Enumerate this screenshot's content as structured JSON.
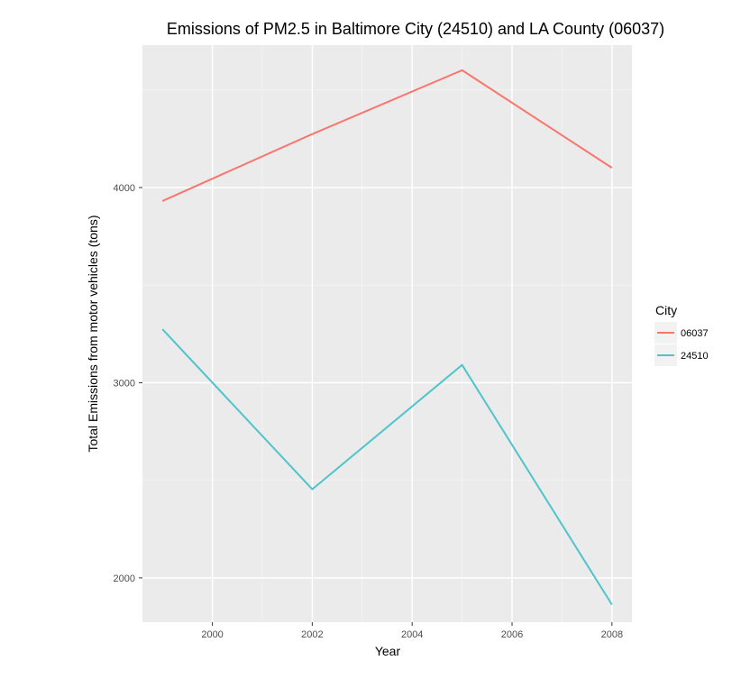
{
  "chart_data": {
    "type": "line",
    "title": "Emissions of PM2.5 in Baltimore City (24510) and LA County (06037)",
    "xlabel": "Year",
    "ylabel": "Total Emissions from motor vehicles (tons)",
    "x": [
      1999,
      2002,
      2005,
      2008
    ],
    "xlim": [
      1998.6,
      2008.4
    ],
    "ylim": [
      1773,
      4730
    ],
    "x_ticks": [
      2000,
      2002,
      2004,
      2006,
      2008
    ],
    "x_tick_labels": [
      "2000",
      "2002",
      "2004",
      "2006",
      "2008"
    ],
    "y_ticks": [
      2000,
      3000,
      4000
    ],
    "y_tick_labels": [
      "2000",
      "3000",
      "4000"
    ],
    "grid": true,
    "panel_background": "#ebebeb",
    "legend": {
      "title": "City",
      "position": "right"
    },
    "series": [
      {
        "name": "06037",
        "color": "#f8766d",
        "values": [
          3931,
          4274,
          4601,
          4101
        ]
      },
      {
        "name": "24510",
        "color": "#4fc4cc",
        "values": [
          3274,
          2454,
          3091,
          1863
        ]
      }
    ]
  }
}
